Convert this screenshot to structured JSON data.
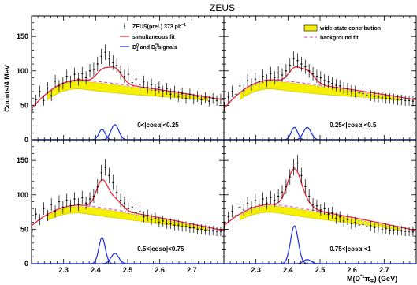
{
  "chart_data": {
    "type": "scatter",
    "title": "ZEUS",
    "xlabel_main": "M(D",
    "xlabel_sup": "*±",
    "xlabel_mid": "π",
    "xlabel_sub": "∓",
    "xlabel_end": ") (GeV)",
    "ylabel": "Counts/4 MeV",
    "xlim": [
      2.2,
      2.8
    ],
    "ylim": [
      0,
      180
    ],
    "xticks": [
      2.3,
      2.4,
      2.5,
      2.6,
      2.7
    ],
    "xtick_labels": [
      "2.3",
      "2.4",
      "2.5",
      "2.6",
      "2.7"
    ],
    "yticks": [
      50,
      100,
      150
    ],
    "ytick_labels": [
      "50",
      "100",
      "150"
    ],
    "legend_left": {
      "data_label": "ZEUS(prel.) 373 pb",
      "data_label_sup": "−1",
      "fit_label": "simultaneous fit",
      "signal_label_a": "D",
      "signal_label_a_sup": "0",
      "signal_label_a_sub": "1",
      "signal_label_mid": " and D",
      "signal_label_b_sup": "*0",
      "signal_label_b_sub": "2",
      "signal_label_end": " signals"
    },
    "legend_right": {
      "wide_label": "wide-state contribution",
      "bg_label": "background fit"
    },
    "colors": {
      "fit": "#e8283a",
      "signal": "#1a2be0",
      "background": "#e040c0",
      "wide": "#f5f000",
      "wide_edge": "#c8c000",
      "data": "#000000"
    },
    "panels": [
      {
        "label": "0<|cosα|<0.25",
        "signal1": {
          "mean": 2.42,
          "peak": 15,
          "width": 0.01
        },
        "signal2": {
          "mean": 2.46,
          "peak": 22,
          "width": 0.012
        },
        "background": {
          "peak_x": 2.35,
          "peak_y": 87,
          "right_y": 58,
          "left_y": 45
        },
        "wide": {
          "center": 2.42,
          "amp": 12,
          "width": 0.09
        },
        "data_points": [
          [
            2.202,
            44
          ],
          [
            2.214,
            58
          ],
          [
            2.226,
            70
          ],
          [
            2.238,
            57
          ],
          [
            2.25,
            75
          ],
          [
            2.262,
            64
          ],
          [
            2.274,
            85
          ],
          [
            2.286,
            78
          ],
          [
            2.298,
            82
          ],
          [
            2.31,
            92
          ],
          [
            2.322,
            84
          ],
          [
            2.334,
            95
          ],
          [
            2.346,
            88
          ],
          [
            2.358,
            96
          ],
          [
            2.37,
            90
          ],
          [
            2.382,
            100
          ],
          [
            2.394,
            102
          ],
          [
            2.406,
            110
          ],
          [
            2.418,
            121
          ],
          [
            2.43,
            127
          ],
          [
            2.442,
            118
          ],
          [
            2.454,
            112
          ],
          [
            2.466,
            108
          ],
          [
            2.478,
            98
          ],
          [
            2.49,
            92
          ],
          [
            2.502,
            95
          ],
          [
            2.514,
            83
          ],
          [
            2.526,
            88
          ],
          [
            2.538,
            80
          ],
          [
            2.55,
            84
          ],
          [
            2.562,
            76
          ],
          [
            2.574,
            80
          ],
          [
            2.586,
            72
          ],
          [
            2.598,
            76
          ],
          [
            2.61,
            70
          ],
          [
            2.622,
            74
          ],
          [
            2.634,
            66
          ],
          [
            2.646,
            70
          ],
          [
            2.658,
            63
          ],
          [
            2.67,
            67
          ],
          [
            2.682,
            60
          ],
          [
            2.694,
            66
          ],
          [
            2.706,
            59
          ],
          [
            2.718,
            63
          ],
          [
            2.73,
            58
          ],
          [
            2.742,
            61
          ],
          [
            2.754,
            56
          ],
          [
            2.766,
            60
          ],
          [
            2.778,
            57
          ],
          [
            2.79,
            59
          ]
        ]
      },
      {
        "label": "0.25<|cosα|<0.5",
        "signal1": {
          "mean": 2.42,
          "peak": 18,
          "width": 0.01
        },
        "signal2": {
          "mean": 2.46,
          "peak": 18,
          "width": 0.012
        },
        "background": {
          "peak_x": 2.35,
          "peak_y": 87,
          "right_y": 58,
          "left_y": 45
        },
        "wide": {
          "center": 2.42,
          "amp": 12,
          "width": 0.09
        },
        "data_points": [
          [
            2.202,
            48
          ],
          [
            2.214,
            62
          ],
          [
            2.226,
            70
          ],
          [
            2.238,
            66
          ],
          [
            2.25,
            78
          ],
          [
            2.262,
            72
          ],
          [
            2.274,
            86
          ],
          [
            2.286,
            80
          ],
          [
            2.298,
            88
          ],
          [
            2.31,
            84
          ],
          [
            2.322,
            92
          ],
          [
            2.334,
            86
          ],
          [
            2.346,
            96
          ],
          [
            2.358,
            90
          ],
          [
            2.37,
            97
          ],
          [
            2.382,
            94
          ],
          [
            2.394,
            100
          ],
          [
            2.406,
            108
          ],
          [
            2.418,
            118
          ],
          [
            2.43,
            115
          ],
          [
            2.442,
            110
          ],
          [
            2.454,
            106
          ],
          [
            2.466,
            100
          ],
          [
            2.478,
            96
          ],
          [
            2.49,
            92
          ],
          [
            2.502,
            90
          ],
          [
            2.514,
            86
          ],
          [
            2.526,
            84
          ],
          [
            2.538,
            82
          ],
          [
            2.55,
            79
          ],
          [
            2.562,
            78
          ],
          [
            2.574,
            75
          ],
          [
            2.586,
            74
          ],
          [
            2.598,
            71
          ],
          [
            2.61,
            70
          ],
          [
            2.622,
            68
          ],
          [
            2.634,
            67
          ],
          [
            2.646,
            65
          ],
          [
            2.658,
            64
          ],
          [
            2.67,
            63
          ],
          [
            2.682,
            62
          ],
          [
            2.694,
            61
          ],
          [
            2.706,
            60
          ],
          [
            2.718,
            60
          ],
          [
            2.73,
            59
          ],
          [
            2.742,
            58
          ],
          [
            2.754,
            58
          ],
          [
            2.766,
            57
          ],
          [
            2.778,
            57
          ],
          [
            2.79,
            56
          ]
        ]
      },
      {
        "label": "0.5<|cosα|<0.75",
        "signal1": {
          "mean": 2.42,
          "peak": 38,
          "width": 0.01
        },
        "signal2": {
          "mean": 2.46,
          "peak": 15,
          "width": 0.012
        },
        "background": {
          "peak_x": 2.35,
          "peak_y": 85,
          "right_y": 48,
          "left_y": 55
        },
        "wide": {
          "center": 2.42,
          "amp": 10,
          "width": 0.09
        },
        "data_points": [
          [
            2.202,
            48
          ],
          [
            2.214,
            72
          ],
          [
            2.226,
            64
          ],
          [
            2.238,
            80
          ],
          [
            2.25,
            70
          ],
          [
            2.262,
            86
          ],
          [
            2.274,
            76
          ],
          [
            2.286,
            90
          ],
          [
            2.298,
            82
          ],
          [
            2.31,
            92
          ],
          [
            2.322,
            84
          ],
          [
            2.334,
            94
          ],
          [
            2.346,
            86
          ],
          [
            2.358,
            96
          ],
          [
            2.37,
            88
          ],
          [
            2.382,
            94
          ],
          [
            2.394,
            98
          ],
          [
            2.406,
            112
          ],
          [
            2.418,
            132
          ],
          [
            2.43,
            140
          ],
          [
            2.442,
            128
          ],
          [
            2.454,
            118
          ],
          [
            2.466,
            104
          ],
          [
            2.478,
            92
          ],
          [
            2.49,
            88
          ],
          [
            2.502,
            80
          ],
          [
            2.514,
            82
          ],
          [
            2.526,
            74
          ],
          [
            2.538,
            76
          ],
          [
            2.55,
            68
          ],
          [
            2.562,
            70
          ],
          [
            2.574,
            64
          ],
          [
            2.586,
            66
          ],
          [
            2.598,
            60
          ],
          [
            2.61,
            62
          ],
          [
            2.622,
            58
          ],
          [
            2.634,
            58
          ],
          [
            2.646,
            56
          ],
          [
            2.658,
            56
          ],
          [
            2.67,
            54
          ],
          [
            2.682,
            54
          ],
          [
            2.694,
            52
          ],
          [
            2.706,
            52
          ],
          [
            2.718,
            50
          ],
          [
            2.73,
            50
          ],
          [
            2.742,
            49
          ],
          [
            2.754,
            48
          ],
          [
            2.766,
            48
          ],
          [
            2.778,
            47
          ],
          [
            2.79,
            47
          ]
        ]
      },
      {
        "label": "0.75<|cosα|<1",
        "signal1": {
          "mean": 2.42,
          "peak": 55,
          "width": 0.012
        },
        "signal2": {
          "mean": 2.46,
          "peak": 6,
          "width": 0.012
        },
        "background": {
          "peak_x": 2.35,
          "peak_y": 86,
          "right_y": 48,
          "left_y": 55
        },
        "wide": {
          "center": 2.42,
          "amp": 10,
          "width": 0.09
        },
        "data_points": [
          [
            2.202,
            54
          ],
          [
            2.214,
            68
          ],
          [
            2.226,
            76
          ],
          [
            2.238,
            70
          ],
          [
            2.25,
            82
          ],
          [
            2.262,
            78
          ],
          [
            2.274,
            88
          ],
          [
            2.286,
            82
          ],
          [
            2.298,
            92
          ],
          [
            2.31,
            86
          ],
          [
            2.322,
            94
          ],
          [
            2.334,
            88
          ],
          [
            2.346,
            96
          ],
          [
            2.358,
            92
          ],
          [
            2.37,
            98
          ],
          [
            2.382,
            104
          ],
          [
            2.394,
            112
          ],
          [
            2.406,
            126
          ],
          [
            2.418,
            140
          ],
          [
            2.43,
            146
          ],
          [
            2.442,
            128
          ],
          [
            2.454,
            112
          ],
          [
            2.466,
            98
          ],
          [
            2.478,
            86
          ],
          [
            2.49,
            84
          ],
          [
            2.502,
            78
          ],
          [
            2.514,
            80
          ],
          [
            2.526,
            72
          ],
          [
            2.538,
            74
          ],
          [
            2.55,
            66
          ],
          [
            2.562,
            68
          ],
          [
            2.574,
            62
          ],
          [
            2.586,
            64
          ],
          [
            2.598,
            58
          ],
          [
            2.61,
            60
          ],
          [
            2.622,
            56
          ],
          [
            2.634,
            57
          ],
          [
            2.646,
            54
          ],
          [
            2.658,
            55
          ],
          [
            2.67,
            52
          ],
          [
            2.682,
            53
          ],
          [
            2.694,
            50
          ],
          [
            2.706,
            51
          ],
          [
            2.718,
            49
          ],
          [
            2.73,
            49
          ],
          [
            2.742,
            48
          ],
          [
            2.754,
            48
          ],
          [
            2.766,
            47
          ],
          [
            2.778,
            47
          ],
          [
            2.79,
            46
          ]
        ]
      }
    ]
  }
}
